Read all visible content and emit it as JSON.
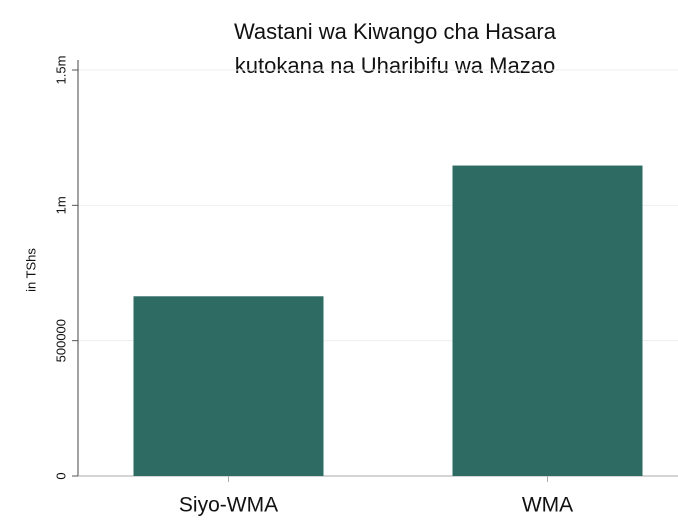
{
  "chart_data": {
    "type": "bar",
    "title": [
      "Wastani wa Kiwango cha Hasara",
      "kutokana na Uharibifu wa Mazao"
    ],
    "y_label": "in TShs",
    "categories": [
      "Siyo-WMA",
      "WMA"
    ],
    "values": [
      664000,
      1147000
    ],
    "color": "#2e6b62",
    "ylim": [
      0,
      1500000
    ],
    "yticks": [
      0,
      500000,
      {
        "value": 1000000,
        "label": "1m"
      },
      {
        "value": 1500000,
        "label": "1.5m"
      }
    ],
    "grid": true
  }
}
